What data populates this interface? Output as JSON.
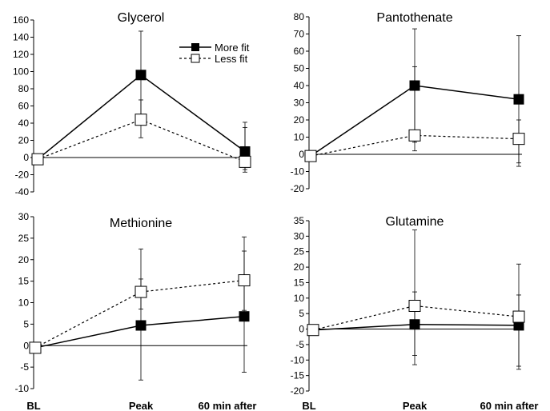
{
  "x_labels": [
    "BL",
    "Peak",
    "60 min after"
  ],
  "legend": {
    "more_fit": "More fit",
    "less_fit": "Less fit"
  },
  "colors": {
    "more_fit": "#000000",
    "less_fit": "#ffffff",
    "lines": "#000000"
  },
  "chart_data": [
    {
      "type": "line",
      "title": "Glycerol",
      "categories": [
        "BL",
        "Peak",
        "60 min after"
      ],
      "ylim": [
        -40,
        160
      ],
      "yticks": [
        -40,
        -20,
        0,
        20,
        40,
        60,
        80,
        100,
        120,
        140,
        160
      ],
      "series": [
        {
          "name": "More fit",
          "values": [
            -2,
            96,
            7
          ],
          "error_upper": [
            null,
            147,
            41
          ],
          "error_lower": [
            null,
            46,
            -17
          ]
        },
        {
          "name": "Less fit",
          "values": [
            -2,
            44,
            -5
          ],
          "error_upper": [
            null,
            67,
            35
          ],
          "error_lower": [
            null,
            23,
            -14
          ]
        }
      ]
    },
    {
      "type": "line",
      "title": "Pantothenate",
      "categories": [
        "BL",
        "Peak",
        "60 min after"
      ],
      "ylim": [
        -20,
        80
      ],
      "yticks": [
        -20,
        -10,
        0,
        10,
        20,
        30,
        40,
        50,
        60,
        70,
        80
      ],
      "series": [
        {
          "name": "More fit",
          "values": [
            -1,
            40,
            32
          ],
          "error_upper": [
            null,
            73,
            69
          ],
          "error_lower": [
            null,
            7,
            -5
          ]
        },
        {
          "name": "Less fit",
          "values": [
            -1,
            11,
            9
          ],
          "error_upper": [
            null,
            51,
            20
          ],
          "error_lower": [
            null,
            2,
            -7
          ]
        }
      ]
    },
    {
      "type": "line",
      "title": "Methionine",
      "categories": [
        "BL",
        "Peak",
        "60 min after"
      ],
      "ylim": [
        -10,
        30
      ],
      "yticks": [
        -10,
        -5,
        0,
        5,
        10,
        15,
        20,
        25,
        30
      ],
      "series": [
        {
          "name": "More fit",
          "values": [
            -0.5,
            4.7,
            6.8
          ],
          "error_upper": [
            null,
            22.5,
            25.3
          ],
          "error_lower": [
            null,
            -8.0,
            -6.2
          ]
        },
        {
          "name": "Less fit",
          "values": [
            -0.5,
            12.5,
            15.2
          ],
          "error_upper": [
            null,
            15.5,
            22.0
          ],
          "error_lower": [
            null,
            8.5,
            8.2
          ]
        }
      ]
    },
    {
      "type": "line",
      "title": "Glutamine",
      "categories": [
        "BL",
        "Peak",
        "60 min after"
      ],
      "ylim": [
        -20,
        35
      ],
      "yticks": [
        -20,
        -15,
        -10,
        -5,
        0,
        5,
        10,
        15,
        20,
        25,
        30,
        35
      ],
      "series": [
        {
          "name": "More fit",
          "values": [
            -0.3,
            1.5,
            1.2
          ],
          "error_upper": [
            null,
            32,
            21
          ],
          "error_lower": [
            null,
            -11.5,
            -13
          ]
        },
        {
          "name": "Less fit",
          "values": [
            -0.3,
            7.5,
            4
          ],
          "error_upper": [
            null,
            12,
            11
          ],
          "error_lower": [
            null,
            -8.5,
            -12
          ]
        }
      ]
    }
  ]
}
